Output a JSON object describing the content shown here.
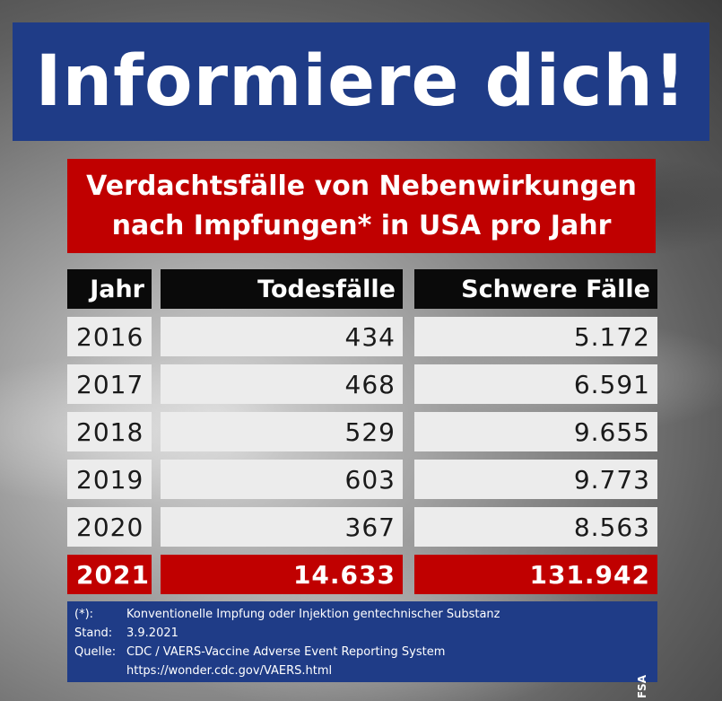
{
  "headline": "Informiere dich!",
  "subtitle": {
    "line1": "Verdachtsfälle von Nebenwirkungen",
    "line2": "nach Impfungen* in USA pro Jahr"
  },
  "table": {
    "headers": [
      "Jahr",
      "Todesfälle",
      "Schwere Fälle"
    ],
    "rows": [
      {
        "year": "2016",
        "deaths": "434",
        "severe": "5.172"
      },
      {
        "year": "2017",
        "deaths": "468",
        "severe": "6.591"
      },
      {
        "year": "2018",
        "deaths": "529",
        "severe": "9.655"
      },
      {
        "year": "2019",
        "deaths": "603",
        "severe": "9.773"
      },
      {
        "year": "2020",
        "deaths": "367",
        "severe": "8.563"
      }
    ],
    "highlight": {
      "year": "2021",
      "deaths": "14.633",
      "severe": "131.942"
    }
  },
  "footer": {
    "note_label": "(*):",
    "note_text": "Konventionelle Impfung oder Injektion gentechnischer Substanz",
    "date_label": "Stand:",
    "date_text": "3.9.2021",
    "source_label": "Quelle:",
    "source_text": "CDC / VAERS-Vaccine Adverse Event Reporting System",
    "source_url": "https://wonder.cdc.gov/VAERS.html",
    "credit": "FSA"
  },
  "colors": {
    "blue": "#1f3c87",
    "red": "#c00000",
    "header": "#0a0a0a",
    "cell": "#ececec"
  }
}
